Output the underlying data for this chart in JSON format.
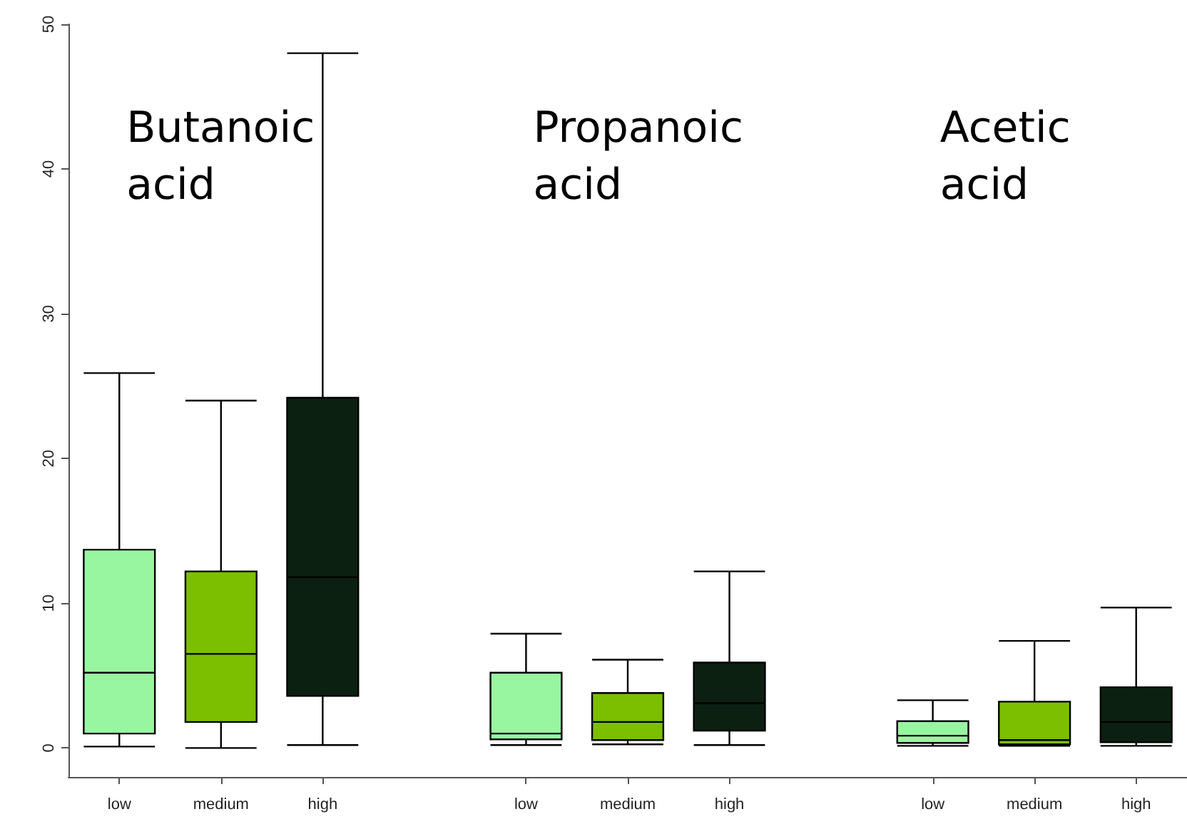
{
  "chart_data": {
    "type": "box",
    "categories": [
      "low",
      "medium",
      "high",
      null,
      "low",
      "medium",
      "high",
      null,
      "low",
      "medium",
      "high"
    ],
    "boxes": [
      {
        "low": 0.1,
        "q1": 1.0,
        "median": 5.2,
        "q3": 13.7,
        "high": 25.9
      },
      {
        "low": 0.0,
        "q1": 1.8,
        "median": 6.5,
        "q3": 12.2,
        "high": 24.0
      },
      {
        "low": 0.2,
        "q1": 3.6,
        "median": 11.8,
        "q3": 24.2,
        "high": 48.0
      },
      null,
      {
        "low": 0.2,
        "q1": 0.6,
        "median": 1.0,
        "q3": 5.2,
        "high": 7.9
      },
      {
        "low": 0.25,
        "q1": 0.55,
        "median": 1.8,
        "q3": 3.8,
        "high": 6.1
      },
      {
        "low": 0.2,
        "q1": 1.2,
        "median": 3.1,
        "q3": 5.9,
        "high": 12.2
      },
      null,
      {
        "low": 0.15,
        "q1": 0.35,
        "median": 0.85,
        "q3": 1.85,
        "high": 3.3
      },
      {
        "low": 0.15,
        "q1": 0.25,
        "median": 0.55,
        "q3": 3.2,
        "high": 7.4
      },
      {
        "low": 0.15,
        "q1": 0.4,
        "median": 1.8,
        "q3": 4.2,
        "high": 9.7
      }
    ],
    "colors": [
      "#98f5a0",
      "#7bbf00",
      "#0b2010",
      null,
      "#98f5a0",
      "#7bbf00",
      "#0b2010",
      null,
      "#98f5a0",
      "#7bbf00",
      "#0b2010"
    ],
    "ylim": [
      -2,
      50
    ],
    "yticks": [
      0,
      10,
      20,
      30,
      40,
      50
    ],
    "annotations": [
      "Butanoic acid",
      "Propanoic acid",
      "Acetic acid"
    ],
    "grid": false,
    "legend": false
  }
}
